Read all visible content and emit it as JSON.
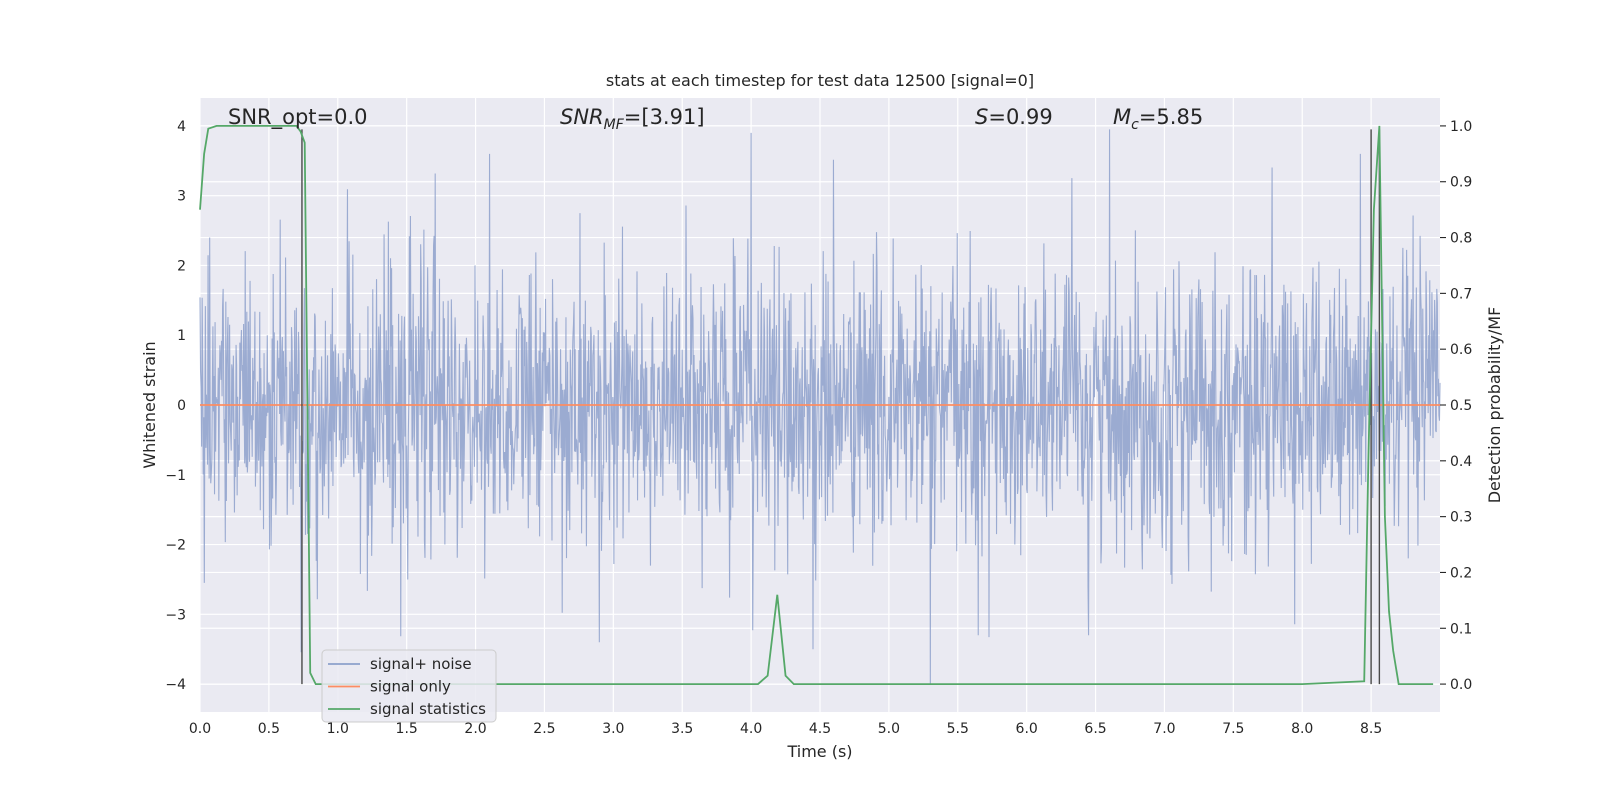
{
  "chart_data": {
    "type": "line",
    "title": "stats at each timestep for test data 12500 [signal=0]",
    "xlabel": "Time (s)",
    "ylabel_left": "Whitened strain",
    "ylabel_right": "Detection probability/MF",
    "xlim": [
      0,
      9.0
    ],
    "ylim_left": [
      -4.4,
      4.4
    ],
    "ylim_right": [
      -0.05,
      1.05
    ],
    "xticks": [
      0.0,
      0.5,
      1.0,
      1.5,
      2.0,
      2.5,
      3.0,
      3.5,
      4.0,
      4.5,
      5.0,
      5.5,
      6.0,
      6.5,
      7.0,
      7.5,
      8.0,
      8.5
    ],
    "xtick_labels": [
      "0.0",
      "0.5",
      "1.0",
      "1.5",
      "2.0",
      "2.5",
      "3.0",
      "3.5",
      "4.0",
      "4.5",
      "5.0",
      "5.5",
      "6.0",
      "6.5",
      "7.0",
      "7.5",
      "8.0",
      "8.5"
    ],
    "yticks_left": [
      -4,
      -3,
      -2,
      -1,
      0,
      1,
      2,
      3,
      4
    ],
    "ytick_labels_left": [
      "−4",
      "−3",
      "−2",
      "−1",
      "0",
      "1",
      "2",
      "3",
      "4"
    ],
    "yticks_right": [
      0.0,
      0.1,
      0.2,
      0.3,
      0.4,
      0.5,
      0.6,
      0.7,
      0.8,
      0.9,
      1.0
    ],
    "ytick_labels_right": [
      "0.0",
      "0.1",
      "0.2",
      "0.3",
      "0.4",
      "0.5",
      "0.6",
      "0.7",
      "0.8",
      "0.9",
      "1.0"
    ],
    "grid": true,
    "legend_placement": "lower-left",
    "annotations": {
      "snr_opt": "SNR_opt=0.0",
      "snr_mf_main": "SNR",
      "snr_mf_sub": "MF",
      "snr_mf_value": "=[3.91]",
      "s_label": "S",
      "s_value": "=0.99",
      "mc_main": "M",
      "mc_sub": "c",
      "mc_value": "=5.85"
    },
    "series": [
      {
        "name": "signal+ noise",
        "color": "#8da0cb",
        "axis": "left",
        "sample_rate_hz": 256,
        "noise_spread": 1.0,
        "notable_peaks": [
          {
            "x": 0.07,
            "y": 2.4
          },
          {
            "x": 2.1,
            "y": 3.6
          },
          {
            "x": 4.0,
            "y": 3.9
          },
          {
            "x": 6.6,
            "y": 3.95
          },
          {
            "x": 8.42,
            "y": 3.6
          },
          {
            "x": 5.3,
            "y": -4.0
          },
          {
            "x": 2.9,
            "y": -3.4
          },
          {
            "x": 4.45,
            "y": -3.5
          },
          {
            "x": 5.65,
            "y": -3.3
          },
          {
            "x": 6.45,
            "y": -3.3
          },
          {
            "x": 0.03,
            "y": -2.55
          }
        ]
      },
      {
        "name": "signal only",
        "color": "#fc8d62",
        "axis": "left",
        "x": [
          0.0,
          9.0
        ],
        "y": [
          0.0,
          0.0
        ]
      },
      {
        "name": "signal statistics",
        "color": "#55a868",
        "axis": "right",
        "x": [
          0.0,
          0.03,
          0.06,
          0.12,
          0.2,
          0.4,
          0.6,
          0.7,
          0.73,
          0.76,
          0.8,
          0.84,
          0.9,
          1.0,
          2.0,
          3.0,
          3.5,
          4.05,
          4.12,
          4.19,
          4.25,
          4.31,
          4.4,
          5.0,
          6.0,
          7.0,
          8.0,
          8.45,
          8.48,
          8.52,
          8.56,
          8.6,
          8.63,
          8.66,
          8.7,
          8.8,
          8.95
        ],
        "y": [
          0.85,
          0.95,
          0.995,
          1.0,
          1.0,
          1.0,
          1.0,
          1.0,
          0.99,
          0.97,
          0.02,
          0.0,
          0.0,
          0.0,
          0.0,
          0.0,
          0.0,
          0.0,
          0.015,
          0.16,
          0.015,
          0.0,
          0.0,
          0.0,
          0.0,
          0.0,
          0.0,
          0.005,
          0.4,
          0.85,
          1.0,
          0.3,
          0.13,
          0.06,
          0.0,
          0.0,
          0.0
        ]
      }
    ],
    "vertical_lines": [
      {
        "x": 0.74,
        "y_from": -4.0,
        "y_to": 3.95
      },
      {
        "x": 8.5,
        "y_from": -4.0,
        "y_to": 3.95
      },
      {
        "x": 8.56,
        "y_from": -4.0,
        "y_to": 3.95
      }
    ]
  }
}
